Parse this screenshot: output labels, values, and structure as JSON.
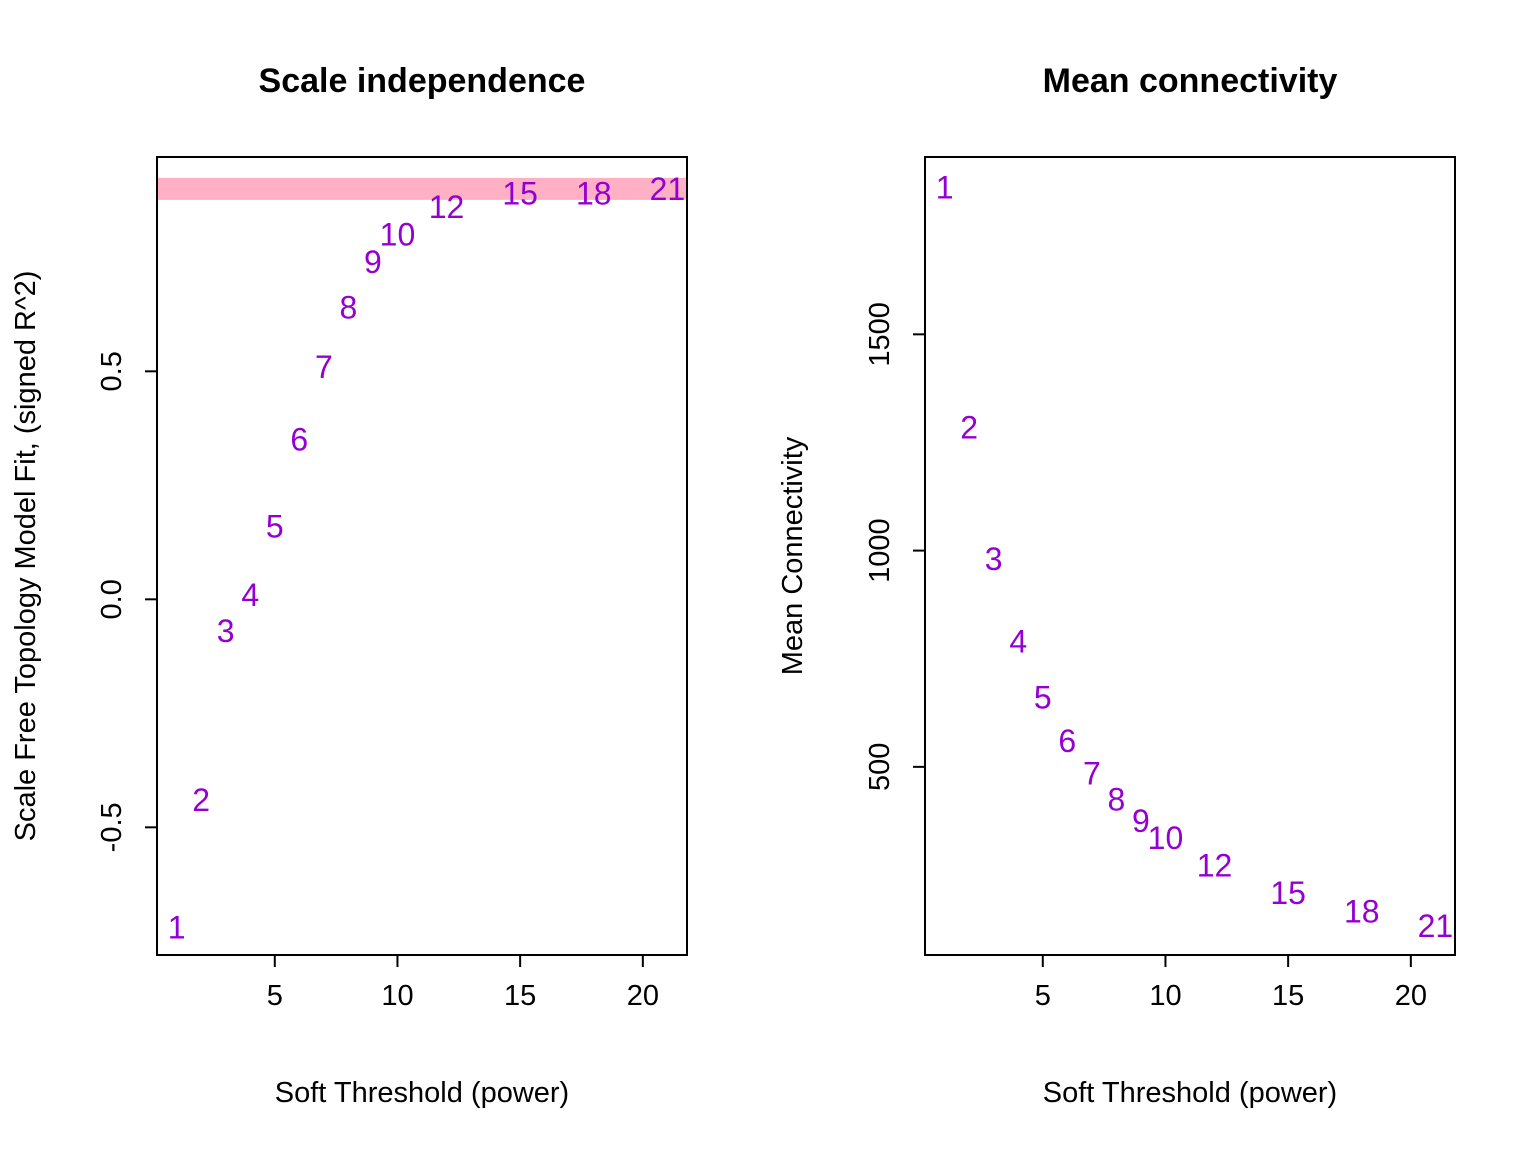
{
  "colors": {
    "point_label": "#9400D3",
    "threshold_line": "#FFB0C4",
    "frame": "#000000",
    "text": "#000000"
  },
  "chart_data": [
    {
      "type": "scatter",
      "marker": "text labels (power value)",
      "title": "Scale independence",
      "xlabel": "Soft Threshold (power)",
      "ylabel": "Scale Free Topology Model Fit, (signed R^2)",
      "xlim": [
        0.2,
        21.8
      ],
      "ylim": [
        -0.78,
        0.97
      ],
      "xticks": [
        5,
        10,
        15,
        20
      ],
      "yticks": [
        -0.5,
        0.0,
        0.5
      ],
      "ytick_labels": [
        "-0.5",
        "0.0",
        "0.5"
      ],
      "hline": 0.9,
      "grid": false,
      "points": [
        {
          "label": "1",
          "x": 1,
          "y": -0.72
        },
        {
          "label": "2",
          "x": 2,
          "y": -0.44
        },
        {
          "label": "3",
          "x": 3,
          "y": -0.07
        },
        {
          "label": "4",
          "x": 4,
          "y": 0.01
        },
        {
          "label": "5",
          "x": 5,
          "y": 0.16
        },
        {
          "label": "6",
          "x": 6,
          "y": 0.35
        },
        {
          "label": "7",
          "x": 7,
          "y": 0.51
        },
        {
          "label": "8",
          "x": 8,
          "y": 0.64
        },
        {
          "label": "9",
          "x": 9,
          "y": 0.74
        },
        {
          "label": "10",
          "x": 10,
          "y": 0.8
        },
        {
          "label": "12",
          "x": 12,
          "y": 0.86
        },
        {
          "label": "15",
          "x": 15,
          "y": 0.89
        },
        {
          "label": "18",
          "x": 18,
          "y": 0.89
        },
        {
          "label": "21",
          "x": 21,
          "y": 0.9
        }
      ]
    },
    {
      "type": "scatter",
      "marker": "text labels (power value)",
      "title": "Mean connectivity",
      "xlabel": "Soft Threshold (power)",
      "ylabel": "Mean Connectivity",
      "xlim": [
        0.2,
        21.8
      ],
      "ylim": [
        65,
        1910
      ],
      "xticks": [
        5,
        10,
        15,
        20
      ],
      "yticks": [
        500,
        1000,
        1500
      ],
      "ytick_labels": [
        "500",
        "1000",
        "1500"
      ],
      "grid": false,
      "points": [
        {
          "label": "1",
          "x": 1,
          "y": 1840
        },
        {
          "label": "2",
          "x": 2,
          "y": 1285
        },
        {
          "label": "3",
          "x": 3,
          "y": 980
        },
        {
          "label": "4",
          "x": 4,
          "y": 790
        },
        {
          "label": "5",
          "x": 5,
          "y": 660
        },
        {
          "label": "6",
          "x": 6,
          "y": 560
        },
        {
          "label": "7",
          "x": 7,
          "y": 485
        },
        {
          "label": "8",
          "x": 8,
          "y": 425
        },
        {
          "label": "9",
          "x": 9,
          "y": 375
        },
        {
          "label": "10",
          "x": 10,
          "y": 335
        },
        {
          "label": "12",
          "x": 12,
          "y": 272
        },
        {
          "label": "15",
          "x": 15,
          "y": 208
        },
        {
          "label": "18",
          "x": 18,
          "y": 165
        },
        {
          "label": "21",
          "x": 21,
          "y": 132
        }
      ]
    }
  ]
}
